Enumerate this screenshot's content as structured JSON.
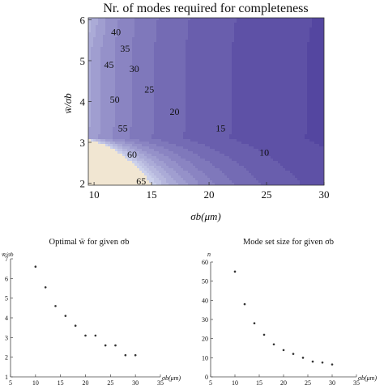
{
  "chart_data": [
    {
      "type": "contour",
      "title": "Nr. of modes required for completeness",
      "xlabel": "σb(μm)",
      "ylabel": "w̄/σb",
      "xlim": [
        9.5,
        30
      ],
      "ylim": [
        1.95,
        6.05
      ],
      "xticks": [
        "10",
        "15",
        "20",
        "25",
        "30"
      ],
      "yticks": [
        "2",
        "3",
        "4",
        "5",
        "6"
      ],
      "xtick_values": [
        10,
        15,
        20,
        25,
        30
      ],
      "ytick_values": [
        2,
        3,
        4,
        5,
        6
      ],
      "contour_levels": [
        10,
        15,
        20,
        25,
        30,
        35,
        40,
        45,
        50,
        55,
        60,
        65
      ],
      "contour_labels": [
        {
          "text": "40",
          "x": 11.9,
          "y": 5.7
        },
        {
          "text": "35",
          "x": 12.7,
          "y": 5.3
        },
        {
          "text": "45",
          "x": 11.3,
          "y": 4.9
        },
        {
          "text": "30",
          "x": 13.5,
          "y": 4.8
        },
        {
          "text": "25",
          "x": 14.8,
          "y": 4.3
        },
        {
          "text": "50",
          "x": 11.8,
          "y": 4.05
        },
        {
          "text": "20",
          "x": 17.0,
          "y": 3.75
        },
        {
          "text": "55",
          "x": 12.5,
          "y": 3.35
        },
        {
          "text": "15",
          "x": 21.0,
          "y": 3.35
        },
        {
          "text": "60",
          "x": 13.3,
          "y": 2.7
        },
        {
          "text": "10",
          "x": 24.8,
          "y": 2.75
        },
        {
          "text": "65",
          "x": 14.1,
          "y": 2.05
        }
      ]
    },
    {
      "type": "scatter",
      "title": "Optimal w̄ for given σb",
      "xlabel": "σb(μm)",
      "ylabel": "w̄/σb",
      "xlim": [
        5,
        35
      ],
      "ylim": [
        1,
        7
      ],
      "xticks": [
        "5",
        "10",
        "15",
        "20",
        "25",
        "30",
        "35"
      ],
      "yticks": [
        "1",
        "2",
        "3",
        "4",
        "5",
        "6",
        "7"
      ],
      "series": [
        {
          "x": [
            10,
            12,
            14,
            16,
            18,
            20,
            22,
            24,
            26,
            28,
            30
          ],
          "y": [
            6.6,
            5.55,
            4.6,
            4.1,
            3.6,
            3.1,
            3.1,
            2.6,
            2.6,
            2.1,
            2.1
          ]
        }
      ]
    },
    {
      "type": "scatter",
      "title": "Mode set size for given σb",
      "xlabel": "σb(μm)",
      "ylabel": "n",
      "xlim": [
        5,
        35
      ],
      "ylim": [
        0,
        60
      ],
      "xticks": [
        "5",
        "10",
        "15",
        "20",
        "25",
        "30",
        "35"
      ],
      "yticks": [
        "0",
        "10",
        "20",
        "30",
        "40",
        "50",
        "60"
      ],
      "series": [
        {
          "x": [
            10,
            12,
            14,
            16,
            18,
            20,
            22,
            24,
            26,
            28,
            30
          ],
          "y": [
            55,
            38,
            28,
            22,
            17,
            14,
            12,
            10,
            8,
            7.5,
            6.5
          ]
        }
      ]
    }
  ]
}
